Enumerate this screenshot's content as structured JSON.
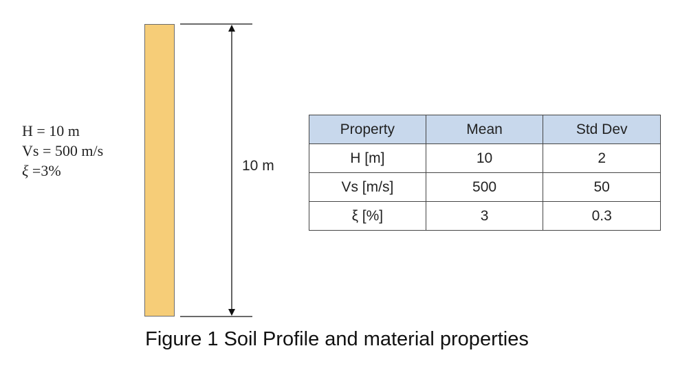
{
  "parameters": {
    "h_line": "H = 10 m",
    "vs_line": "Vs = 500 m/s",
    "xi_symbol": "ξ",
    "xi_value": " =3%"
  },
  "dimension": {
    "label": "10 m"
  },
  "table": {
    "headers": [
      "Property",
      "Mean",
      "Std Dev"
    ],
    "rows": [
      [
        "H [m]",
        "10",
        "2"
      ],
      [
        "Vs [m/s]",
        "500",
        "50"
      ],
      [
        "ξ [%]",
        "3",
        "0.3"
      ]
    ]
  },
  "caption": "Figure 1 Soil Profile and material properties",
  "colors": {
    "soil_column": "#f6cd78",
    "table_header": "#c8d8ec"
  }
}
